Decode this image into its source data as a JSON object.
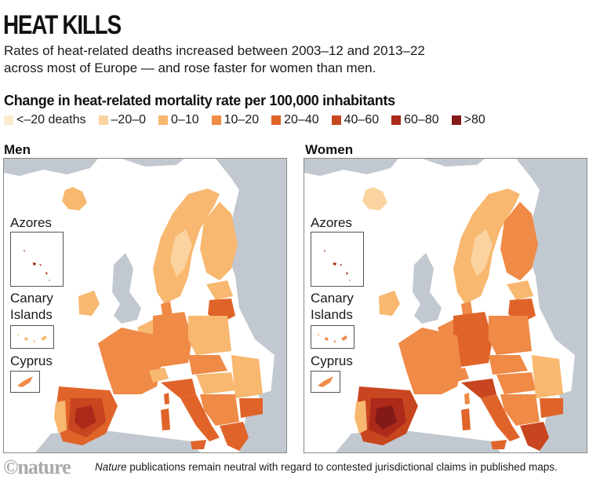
{
  "header": {
    "title": "HEAT KILLS",
    "subtitle_line1": "Rates of heat-related deaths increased between 2003–12 and 2013–22",
    "subtitle_line2": "across most of Europe — and rose faster for women than men."
  },
  "legend": {
    "title": "Change in heat-related mortality rate per 100,000 inhabitants",
    "items": [
      {
        "label": "<–20 deaths",
        "color": "#fdebd0"
      },
      {
        "label": "–20–0",
        "color": "#fbd3a0"
      },
      {
        "label": "0–10",
        "color": "#f8b870"
      },
      {
        "label": "10–20",
        "color": "#ef8a47"
      },
      {
        "label": "20–40",
        "color": "#e0642a"
      },
      {
        "label": "40–60",
        "color": "#c8461f"
      },
      {
        "label": "60–80",
        "color": "#ab2a1a"
      },
      {
        "label": ">80",
        "color": "#841a18"
      }
    ]
  },
  "colors": {
    "land_other": "#c2c8d0",
    "sea": "#ffffff"
  },
  "panels": [
    {
      "label": "Men",
      "insets": {
        "azores": "Azores",
        "canary_1": "Canary",
        "canary_2": "Islands",
        "cyprus": "Cyprus"
      },
      "regions": {
        "iceland": 2,
        "scandinavia": 2,
        "sweden_inner": 1,
        "finland": 2,
        "baltics_north": 2,
        "lithuania": 4,
        "ireland": 2,
        "france": 3,
        "germany": 3,
        "poland": 2,
        "czech_austria": 3,
        "hungary": 2,
        "romania": 2,
        "balkans": 3,
        "bulgaria": 4,
        "greece": 4,
        "italy_north": 4,
        "italy_south": 4,
        "iberia": 4,
        "iberia_core": 5,
        "iberia_hot": 6,
        "portugal_coast": 2,
        "sardinia": 4,
        "corsica": 4,
        "sicily": 4,
        "denmark": 3,
        "benelux": 2,
        "swiss": 2,
        "azores": 6,
        "canary": 2,
        "cyprus": 3
      }
    },
    {
      "label": "Women",
      "insets": {
        "azores": "Azores",
        "canary_1": "Canary",
        "canary_2": "Islands",
        "cyprus": "Cyprus"
      },
      "regions": {
        "iceland": 1,
        "scandinavia": 2,
        "sweden_inner": 1,
        "finland": 3,
        "baltics_north": 2,
        "lithuania": 4,
        "ireland": 2,
        "france": 3,
        "germany": 4,
        "poland": 3,
        "czech_austria": 3,
        "hungary": 3,
        "romania": 2,
        "balkans": 3,
        "bulgaria": 4,
        "greece": 5,
        "italy_north": 5,
        "italy_south": 4,
        "iberia": 5,
        "iberia_core": 6,
        "iberia_hot": 7,
        "portugal_coast": 2,
        "sardinia": 4,
        "corsica": 3,
        "sicily": 4,
        "denmark": 3,
        "benelux": 3,
        "swiss": 3,
        "azores": 6,
        "canary": 3,
        "cyprus": 3
      }
    }
  ],
  "chart_data": {
    "type": "heatmap",
    "title": "Change in heat-related mortality rate per 100,000 inhabitants",
    "subtitle": "Rates of heat-related deaths increased between 2003–12 and 2013–22 across most of Europe — and rose faster for women than men.",
    "periods": [
      "2003–12",
      "2013–22"
    ],
    "bins": [
      "<–20 deaths",
      "–20–0",
      "0–10",
      "10–20",
      "20–40",
      "40–60",
      "60–80",
      ">80"
    ],
    "panels": [
      "Men",
      "Women"
    ],
    "insets": [
      "Azores",
      "Canary Islands",
      "Cyprus"
    ],
    "legend_position": "top"
  },
  "footer": {
    "logo": "©nature",
    "note_italic": "Nature",
    "note_rest": " publications remain neutral with regard to contested jurisdictional claims in published maps."
  }
}
